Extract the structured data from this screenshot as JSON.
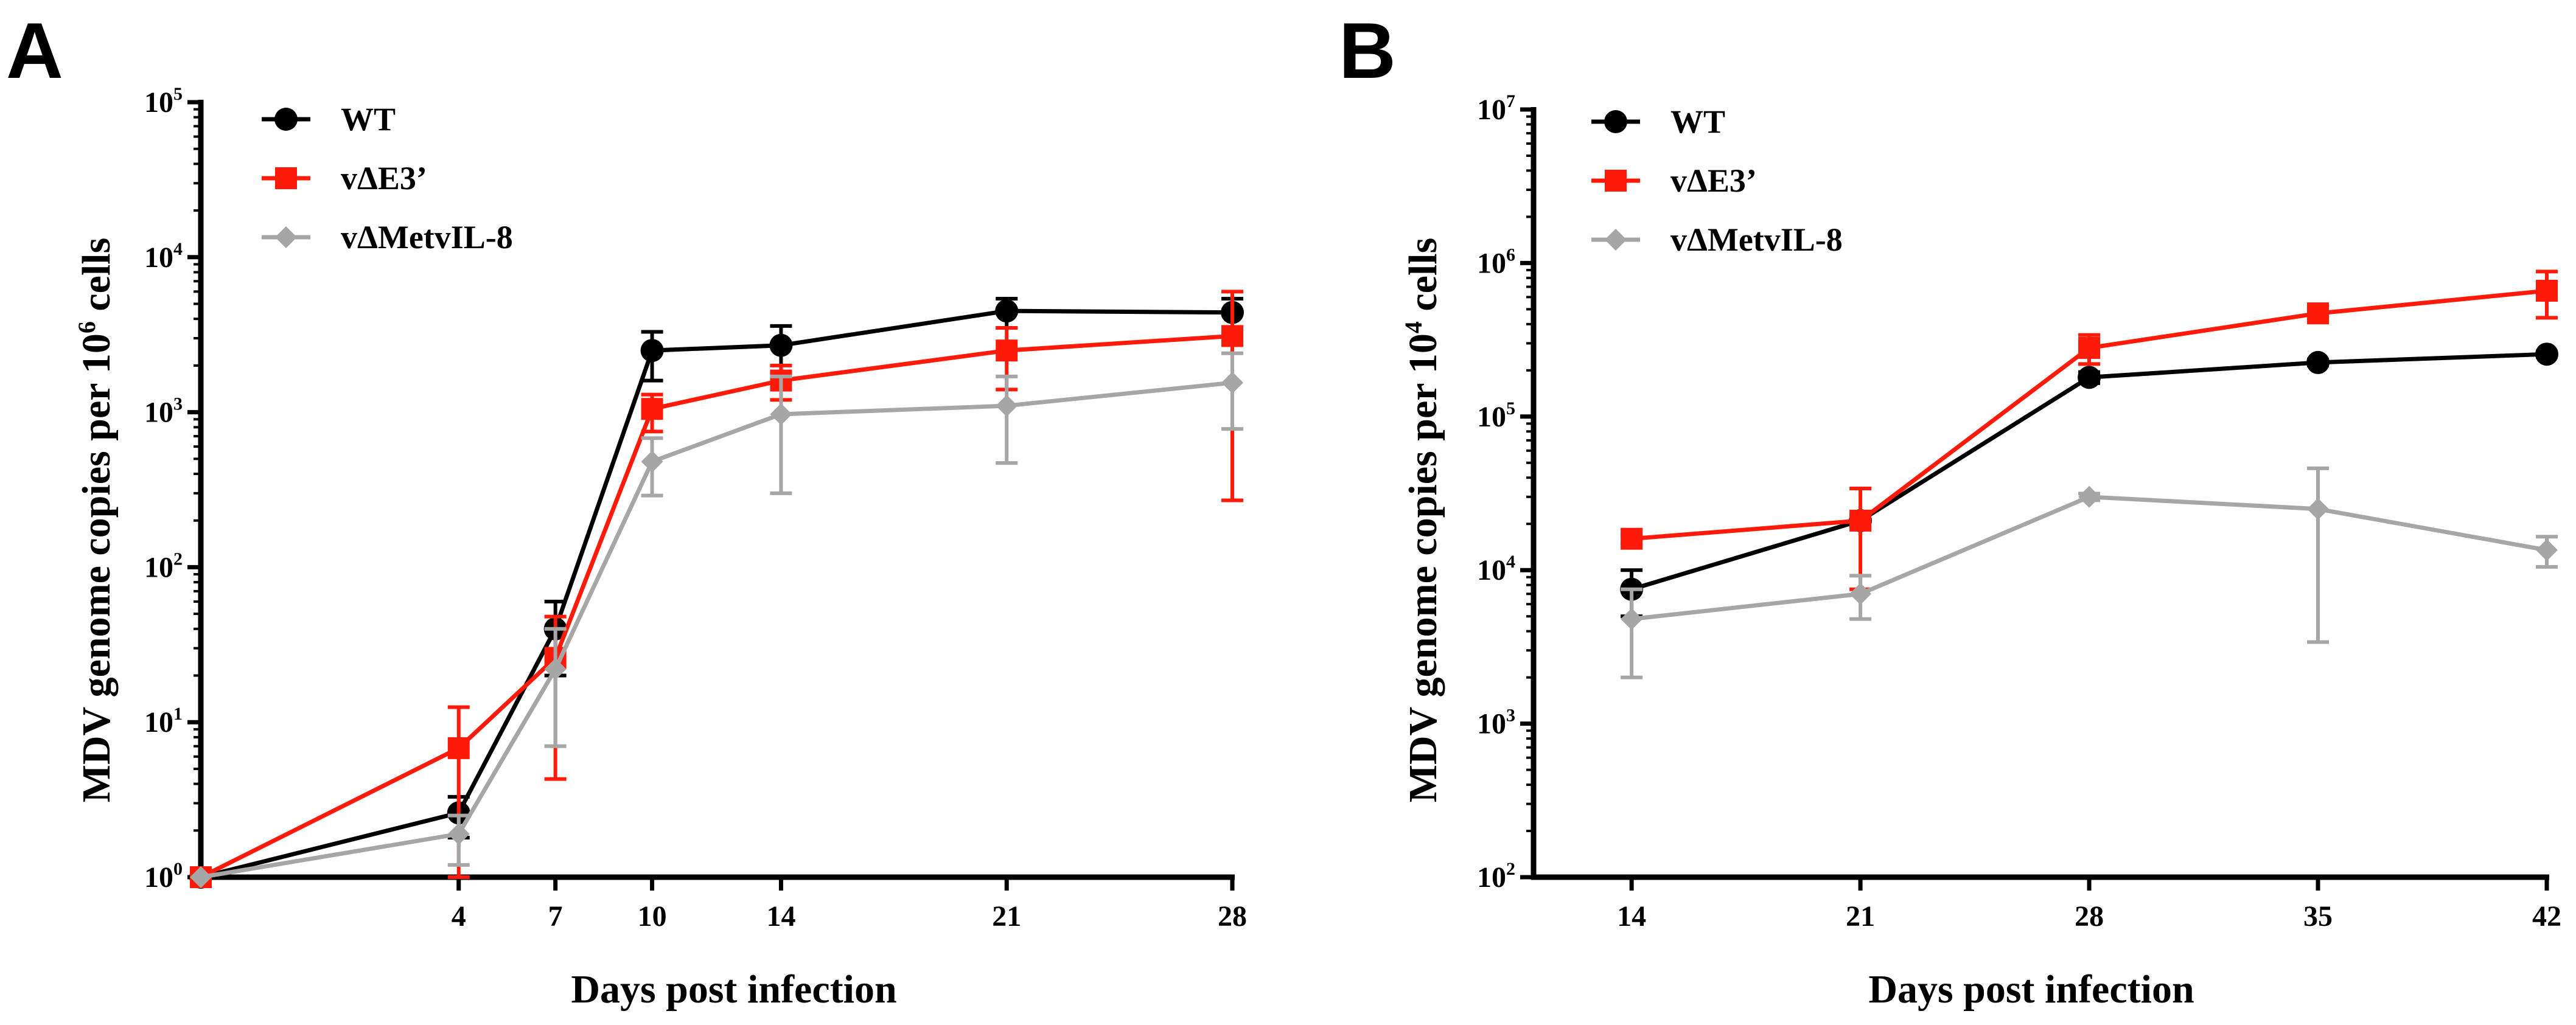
{
  "chart_data": [
    {
      "panel": "A",
      "type": "line",
      "ylabel_text": "MDV genome copies per 10",
      "ylabel_exp": "6",
      "ylabel_tail": " cells",
      "xlabel": "Days post infection",
      "x_ticks": [
        4,
        7,
        10,
        14,
        21,
        28
      ],
      "xlim": [
        -4,
        28
      ],
      "y_scale": "log",
      "ylim": [
        1,
        100000
      ],
      "y_ticks": [
        {
          "base": "10",
          "exp": "0"
        },
        {
          "base": "10",
          "exp": "1"
        },
        {
          "base": "10",
          "exp": "2"
        },
        {
          "base": "10",
          "exp": "3"
        },
        {
          "base": "10",
          "exp": "4"
        },
        {
          "base": "10",
          "exp": "5"
        }
      ],
      "legend_position": "top-left",
      "series": [
        {
          "name": "WT",
          "color": "#000000",
          "marker": "circle",
          "x": [
            -4,
            4,
            7,
            10,
            14,
            21,
            28
          ],
          "y": [
            1,
            2.6,
            40,
            2500,
            2700,
            4500,
            4400
          ],
          "err_low": [
            1,
            1.8,
            20,
            1600,
            1800,
            3500,
            3400
          ],
          "err_high": [
            1,
            3.3,
            60,
            3300,
            3600,
            5400,
            5400
          ]
        },
        {
          "name": "vΔE3’",
          "color": "#ff1a0a",
          "marker": "square",
          "x": [
            -4,
            4,
            7,
            10,
            14,
            21,
            28
          ],
          "y": [
            1,
            6.8,
            26,
            1050,
            1600,
            2500,
            3100
          ],
          "err_low": [
            1,
            1,
            4.3,
            750,
            1200,
            1400,
            270
          ],
          "err_high": [
            1,
            12.5,
            48,
            1300,
            2000,
            3500,
            6000
          ]
        },
        {
          "name": "vΔMetvIL-8",
          "color": "#a6a6a6",
          "marker": "diamond",
          "x": [
            -4,
            4,
            7,
            10,
            14,
            21,
            28
          ],
          "y": [
            1,
            1.9,
            22,
            480,
            970,
            1100,
            1550
          ],
          "err_low": [
            1,
            1.2,
            7,
            290,
            300,
            470,
            780
          ],
          "err_high": [
            1,
            2.5,
            40,
            680,
            1700,
            1700,
            2400
          ]
        }
      ]
    },
    {
      "panel": "B",
      "type": "line",
      "ylabel_text": "MDV genome copies per 10",
      "ylabel_exp": "4",
      "ylabel_tail": " cells",
      "xlabel": "Days post infection",
      "x_ticks": [
        14,
        21,
        28,
        35,
        42
      ],
      "xlim": [
        11,
        42
      ],
      "y_scale": "log",
      "ylim": [
        100,
        10000000
      ],
      "y_ticks": [
        {
          "base": "10",
          "exp": "2"
        },
        {
          "base": "10",
          "exp": "3"
        },
        {
          "base": "10",
          "exp": "4"
        },
        {
          "base": "10",
          "exp": "5"
        },
        {
          "base": "10",
          "exp": "6"
        },
        {
          "base": "10",
          "exp": "7"
        }
      ],
      "legend_position": "top-left",
      "series": [
        {
          "name": "WT",
          "color": "#000000",
          "marker": "circle",
          "x": [
            14,
            21,
            28,
            35,
            42
          ],
          "y": [
            7500,
            21000,
            180000,
            225000,
            255000
          ],
          "err_low": [
            5000,
            19000,
            165000,
            215000,
            245000
          ],
          "err_high": [
            10000,
            23000,
            195000,
            235000,
            265000
          ]
        },
        {
          "name": "vΔE3’",
          "color": "#ff1a0a",
          "marker": "square",
          "x": [
            14,
            21,
            28,
            35,
            42
          ],
          "y": [
            16000,
            21000,
            280000,
            470000,
            660000
          ],
          "err_low": [
            15000,
            7500,
            220000,
            440000,
            440000
          ],
          "err_high": [
            17000,
            34000,
            340000,
            500000,
            880000
          ]
        },
        {
          "name": "vΔMetvIL-8",
          "color": "#a6a6a6",
          "marker": "diamond",
          "x": [
            14,
            21,
            28,
            35,
            42
          ],
          "y": [
            4800,
            7000,
            30000,
            25000,
            13500
          ],
          "err_low": [
            2000,
            4800,
            28500,
            3400,
            10500
          ],
          "err_high": [
            7500,
            9200,
            31500,
            46000,
            16500
          ]
        }
      ]
    }
  ]
}
